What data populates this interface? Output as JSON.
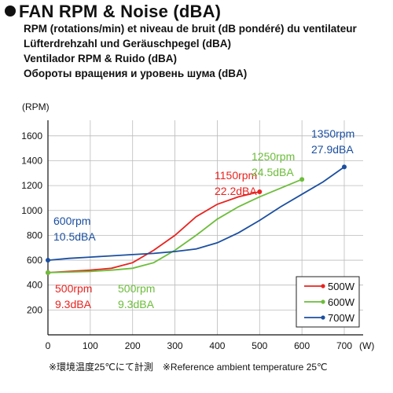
{
  "header": {
    "title": "FAN RPM &  Noise (dBA)",
    "subtitles": [
      "RPM (rotations/min) et niveau de bruit (dB pondéré) du ventilateur",
      "Lüfterdrehzahl und Geräuschpegel (dBA)",
      "Ventilador RPM & Ruido (dBA)",
      "Обороты вращения и уровень шума (dBA)"
    ]
  },
  "footnote": "※環境温度25℃にて計測　※Reference ambient temperature 25℃",
  "colors": {
    "500W": "#e8231f",
    "600W": "#6cbd3a",
    "700W": "#1b4fa0",
    "grid": "#bbbbbb"
  },
  "chart_data": {
    "type": "line",
    "ylabel": "(RPM)",
    "xlabel": "(W)",
    "xlim": [
      0,
      700
    ],
    "ylim": [
      0,
      1700
    ],
    "xticks": [
      0,
      100,
      200,
      300,
      400,
      500,
      600,
      700
    ],
    "yticks": [
      200,
      400,
      600,
      800,
      1000,
      1200,
      1400,
      1600
    ],
    "grid": true,
    "legend_position": "bottom-right",
    "series": [
      {
        "name": "500W",
        "color": "#e8231f",
        "x": [
          0,
          50,
          100,
          150,
          200,
          250,
          300,
          350,
          400,
          450,
          500
        ],
        "y": [
          500,
          510,
          520,
          535,
          580,
          680,
          800,
          950,
          1050,
          1110,
          1150
        ]
      },
      {
        "name": "600W",
        "color": "#6cbd3a",
        "x": [
          0,
          50,
          100,
          150,
          200,
          250,
          300,
          350,
          400,
          450,
          500,
          550,
          600
        ],
        "y": [
          500,
          505,
          510,
          520,
          535,
          580,
          680,
          800,
          930,
          1030,
          1110,
          1180,
          1250
        ]
      },
      {
        "name": "700W",
        "color": "#1b4fa0",
        "x": [
          0,
          50,
          100,
          150,
          200,
          250,
          300,
          350,
          400,
          450,
          500,
          550,
          600,
          650,
          700
        ],
        "y": [
          600,
          615,
          625,
          635,
          645,
          655,
          670,
          690,
          740,
          820,
          920,
          1030,
          1130,
          1230,
          1350
        ]
      }
    ],
    "annotations": [
      {
        "series": "500W",
        "lines": [
          "1150rpm",
          "22.2dBA"
        ]
      },
      {
        "series": "600W",
        "lines": [
          "1250rpm",
          "24.5dBA"
        ]
      },
      {
        "series": "700W",
        "lines": [
          "1350rpm",
          "27.9dBA"
        ]
      },
      {
        "series": "700W",
        "lines": [
          "600rpm",
          "10.5dBA"
        ]
      },
      {
        "series": "500W",
        "lines": [
          "500rpm",
          "9.3dBA"
        ]
      },
      {
        "series": "600W",
        "lines": [
          "500rpm",
          "9.3dBA"
        ]
      }
    ]
  }
}
